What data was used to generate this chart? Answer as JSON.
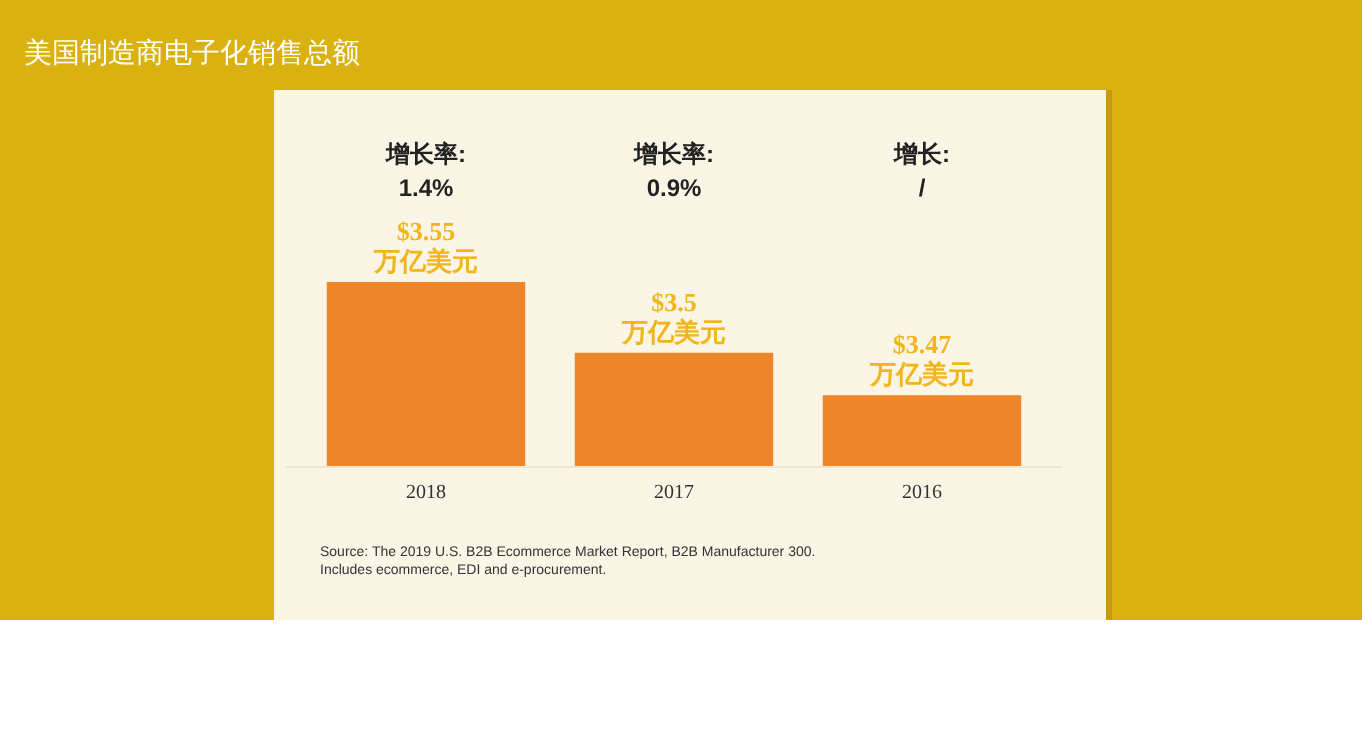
{
  "chart_data": {
    "type": "bar",
    "title": "美国制造商电子化销售总额",
    "categories": [
      "2018",
      "2017",
      "2016"
    ],
    "values": [
      3.55,
      3.5,
      3.47
    ],
    "color": "#f0862a",
    "ylim": [
      3.42,
      3.55
    ],
    "value_labels": [
      "$3.55\n万亿美元",
      "$3.5\n万亿美元",
      "$3.47\n万亿美元"
    ],
    "annotations": [
      "增长率:\n1.4%",
      "增长率:\n0.9%",
      "增长:\n/",
      "Source: The 2019 U.S. B2B Ecommerce Market Report, B2B Manufacturer 300.\nIncludes ecommerce, EDI and e-procurement."
    ]
  }
}
